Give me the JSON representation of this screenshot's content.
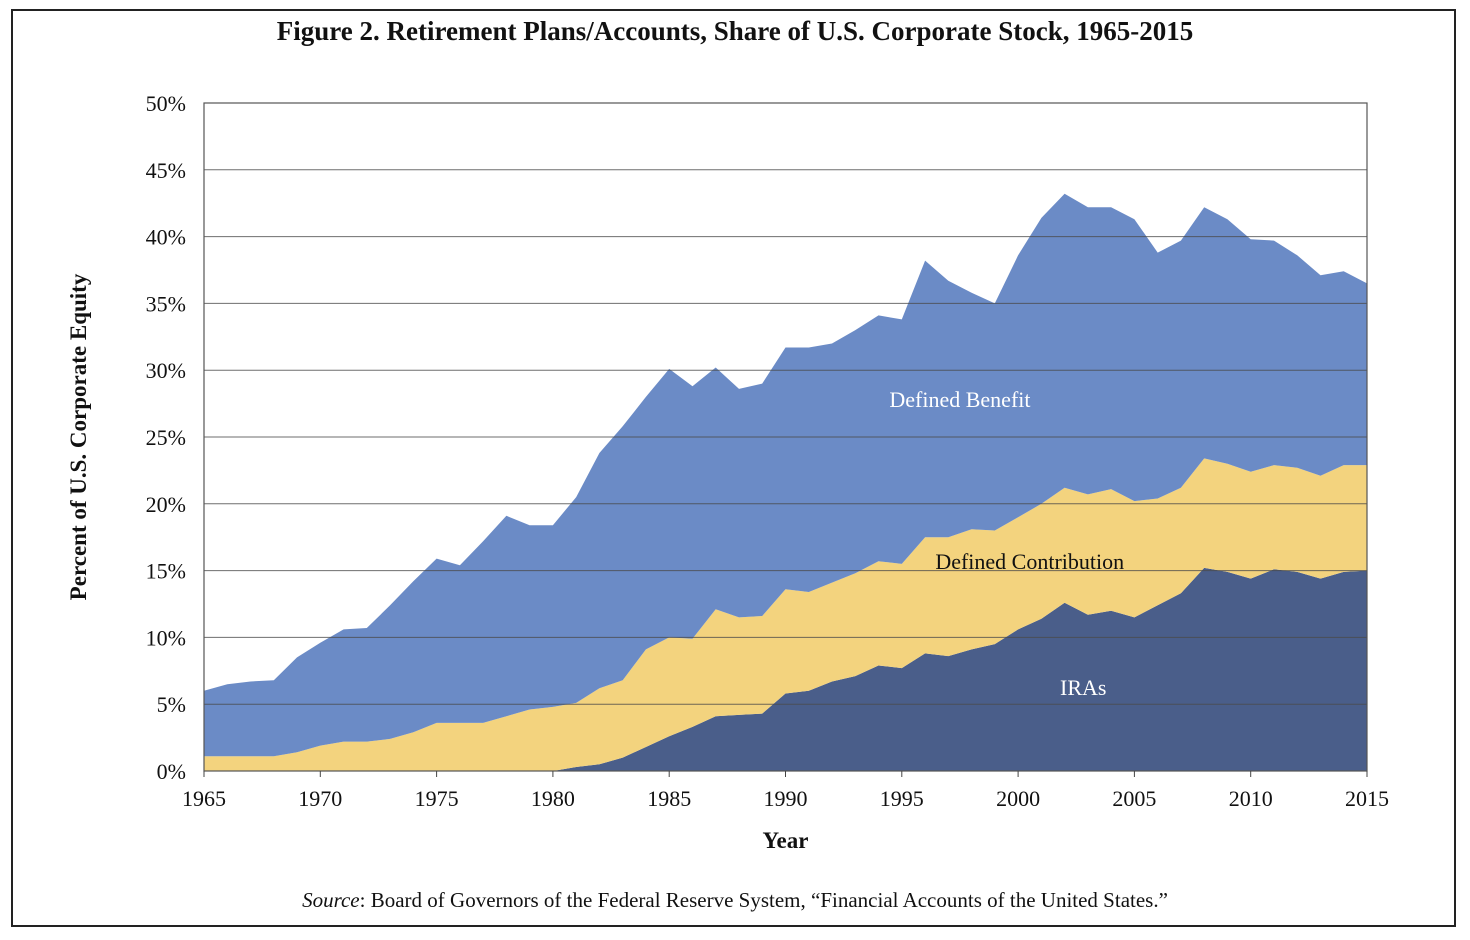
{
  "chart_data": {
    "type": "area",
    "stacked": true,
    "title": "Figure 2. Retirement Plans/Accounts, Share of U.S. Corporate Stock, 1965-2015",
    "xlabel": "Year",
    "ylabel": "Percent of U.S. Corporate Equity",
    "x_ticks": [
      "1965",
      "1970",
      "1975",
      "1980",
      "1985",
      "1990",
      "1995",
      "2000",
      "2005",
      "2010",
      "2015"
    ],
    "y_ticks": [
      "0%",
      "5%",
      "10%",
      "15%",
      "20%",
      "25%",
      "30%",
      "35%",
      "40%",
      "45%",
      "50%"
    ],
    "xlim": [
      1965,
      2015
    ],
    "ylim": [
      0,
      50
    ],
    "grid": true,
    "x": [
      1965,
      1966,
      1967,
      1968,
      1969,
      1970,
      1971,
      1972,
      1973,
      1974,
      1975,
      1976,
      1977,
      1978,
      1979,
      1980,
      1981,
      1982,
      1983,
      1984,
      1985,
      1986,
      1987,
      1988,
      1989,
      1990,
      1991,
      1992,
      1993,
      1994,
      1995,
      1996,
      1997,
      1998,
      1999,
      2000,
      2001,
      2002,
      2003,
      2004,
      2005,
      2006,
      2007,
      2008,
      2009,
      2010,
      2011,
      2012,
      2013,
      2014,
      2015
    ],
    "series": [
      {
        "name": "IRAs",
        "color": "#4a5e8a",
        "label_color": "#ffffff",
        "values": [
          0,
          0,
          0,
          0,
          0,
          0,
          0,
          0,
          0,
          0,
          0,
          0,
          0,
          0,
          0,
          0,
          0.3,
          0.5,
          1.0,
          1.8,
          2.6,
          3.3,
          4.1,
          4.2,
          4.3,
          5.8,
          6.0,
          6.7,
          7.1,
          7.9,
          7.7,
          8.8,
          8.6,
          9.1,
          9.5,
          10.6,
          11.4,
          12.6,
          11.7,
          12.0,
          11.5,
          12.4,
          13.3,
          15.2,
          14.9,
          14.4,
          15.1,
          14.9,
          14.4,
          14.9,
          15.0
        ]
      },
      {
        "name": "Defined Contribution",
        "color": "#f3d37e",
        "label_color": "#111111",
        "values": [
          1.1,
          1.1,
          1.1,
          1.1,
          1.4,
          1.9,
          2.2,
          2.2,
          2.4,
          2.9,
          3.6,
          3.6,
          3.6,
          4.1,
          4.6,
          4.8,
          4.8,
          5.7,
          5.8,
          7.3,
          7.4,
          6.6,
          8.0,
          7.3,
          7.3,
          7.8,
          7.4,
          7.4,
          7.7,
          7.8,
          7.8,
          8.7,
          8.9,
          9.0,
          8.5,
          8.4,
          8.6,
          8.6,
          9.0,
          9.1,
          8.7,
          8.0,
          7.9,
          8.2,
          8.1,
          8.0,
          7.8,
          7.8,
          7.7,
          8.0,
          7.9
        ]
      },
      {
        "name": "Defined Benefit",
        "color": "#6b8bc6",
        "label_color": "#ffffff",
        "values": [
          4.9,
          5.4,
          5.6,
          5.7,
          7.1,
          7.7,
          8.4,
          8.5,
          10.0,
          11.3,
          12.3,
          11.8,
          13.6,
          15.0,
          13.8,
          13.6,
          15.4,
          17.6,
          19.0,
          18.9,
          20.1,
          18.9,
          18.1,
          17.1,
          17.4,
          18.1,
          18.3,
          17.9,
          18.2,
          18.4,
          18.3,
          20.7,
          19.2,
          17.7,
          17.0,
          19.6,
          21.4,
          22.0,
          21.5,
          21.1,
          21.1,
          18.4,
          18.5,
          18.8,
          18.3,
          17.4,
          16.8,
          15.9,
          15.0,
          14.5,
          13.6
        ]
      }
    ],
    "annotations": [
      "Defined Benefit",
      "Defined Contribution",
      "IRAs"
    ]
  },
  "source": {
    "label": "Source",
    "text": ": Board of Governors of the Federal Reserve System, “Financial Accounts of the United States.”"
  }
}
